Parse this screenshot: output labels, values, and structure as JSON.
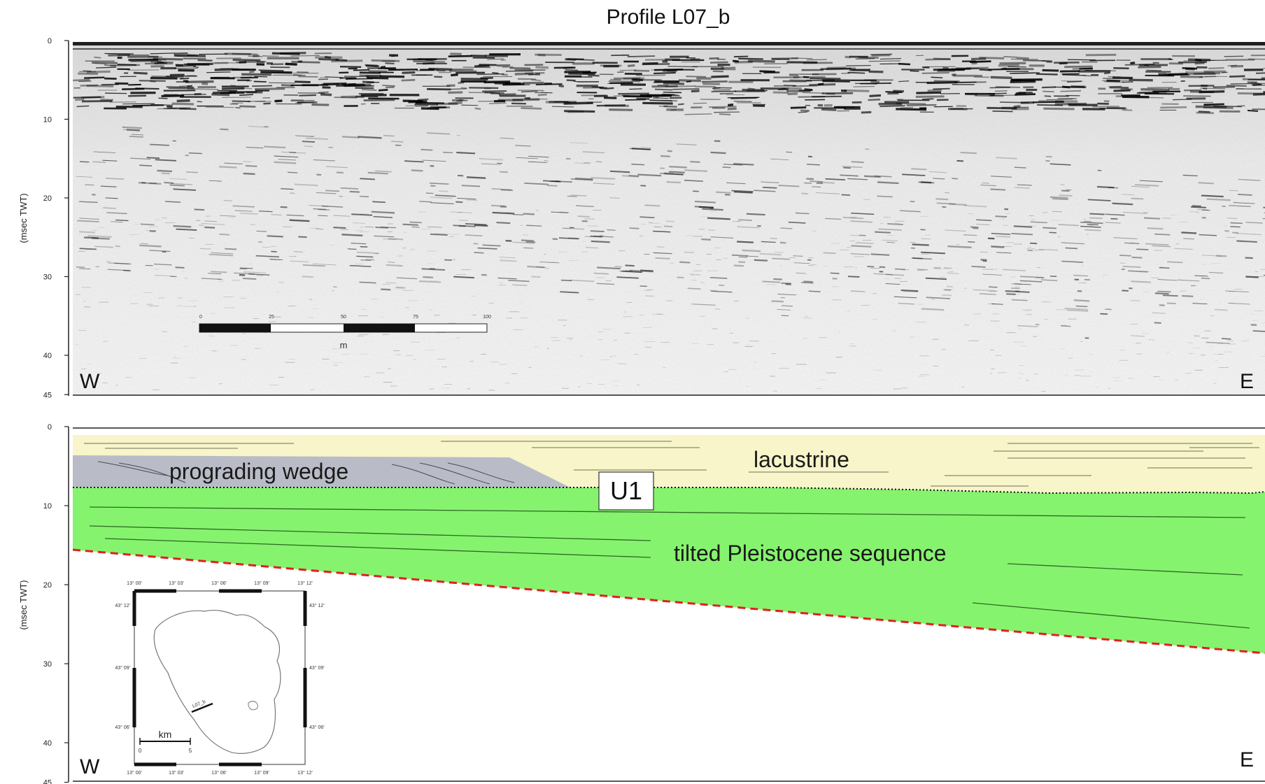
{
  "title": "Profile L07_b",
  "top_panel": {
    "y_axis_label": "(msec TWT)",
    "y_ticks": [
      "0",
      "10",
      "20",
      "30",
      "40",
      "45"
    ],
    "west_label": "W",
    "east_label": "E",
    "scale_bar": {
      "ticks": [
        "0",
        "25",
        "50",
        "75",
        "100"
      ],
      "unit": "m"
    }
  },
  "bottom_panel": {
    "y_axis_label": "(msec TWT)",
    "y_ticks": [
      "0",
      "10",
      "20",
      "30",
      "40",
      "45"
    ],
    "west_label": "W",
    "east_label": "E",
    "labels": {
      "prograding_wedge": "prograding wedge",
      "lacustrine": "lacustrine",
      "unit": "U1",
      "pleistocene": "tilted Pleistocene sequence"
    },
    "colors": {
      "lacustrine": "#f7f5c9",
      "prograding_wedge": "#b9bcc6",
      "pleistocene": "#86f36e",
      "unconformity": "#e0201e"
    },
    "inset_map": {
      "top_ticks": [
        "13° 00'",
        "13° 03'",
        "13° 06'",
        "13° 09'",
        "13° 12'"
      ],
      "bottom_ticks": [
        "13° 00'",
        "13° 03'",
        "13° 06'",
        "13° 09'",
        "13° 12'"
      ],
      "left_ticks": [
        "43° 12'",
        "43° 09'",
        "43° 06'"
      ],
      "right_ticks": [
        "43° 12'",
        "43° 09'",
        "43° 06'"
      ],
      "scale_unit": "km",
      "scale_ticks": [
        "0",
        "5"
      ],
      "profile_label": "L07_b"
    }
  }
}
